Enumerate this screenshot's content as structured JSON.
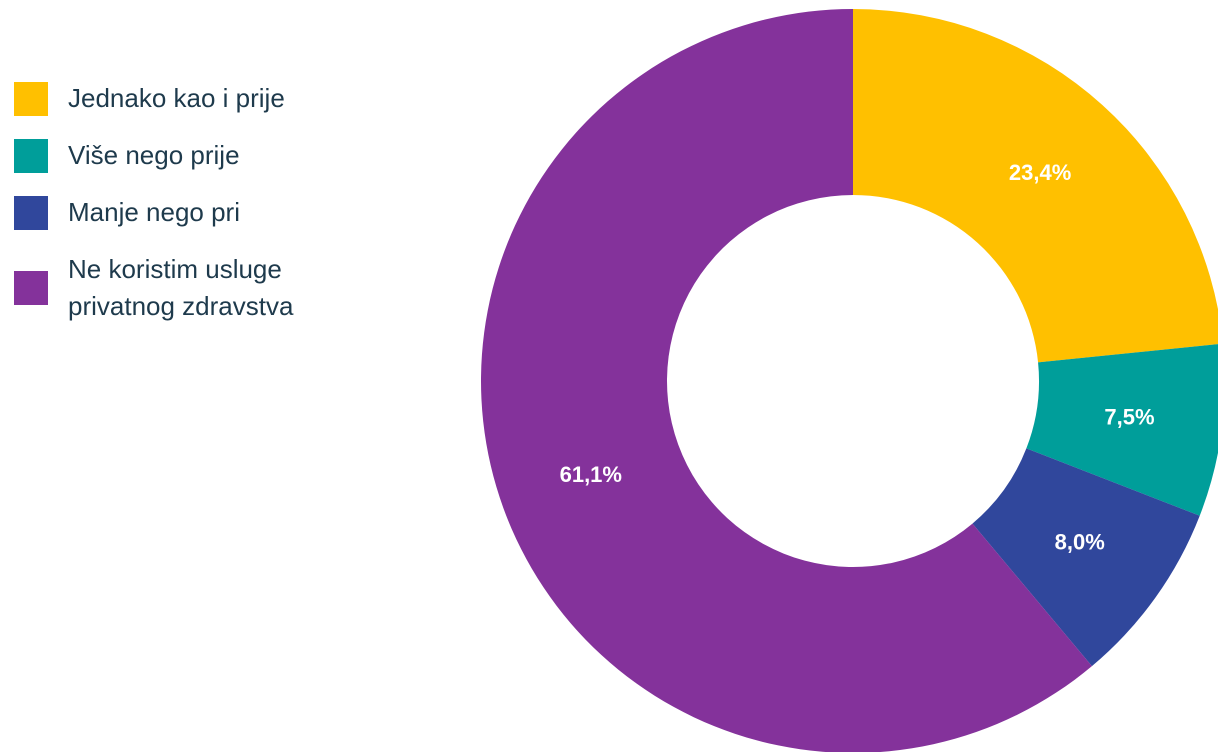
{
  "chart_data": {
    "type": "donut",
    "categories": [
      "Jednako kao i prije",
      "Više nego prije",
      "Manje nego pri",
      "Ne koristim usluge privatnog zdravstva"
    ],
    "values": [
      23.4,
      7.5,
      8.0,
      61.1
    ],
    "value_labels": [
      "23,4%",
      "7,5%",
      "8,0%",
      "61,1%"
    ],
    "colors": [
      "#FFC000",
      "#009E9A",
      "#30479C",
      "#84329B"
    ]
  }
}
